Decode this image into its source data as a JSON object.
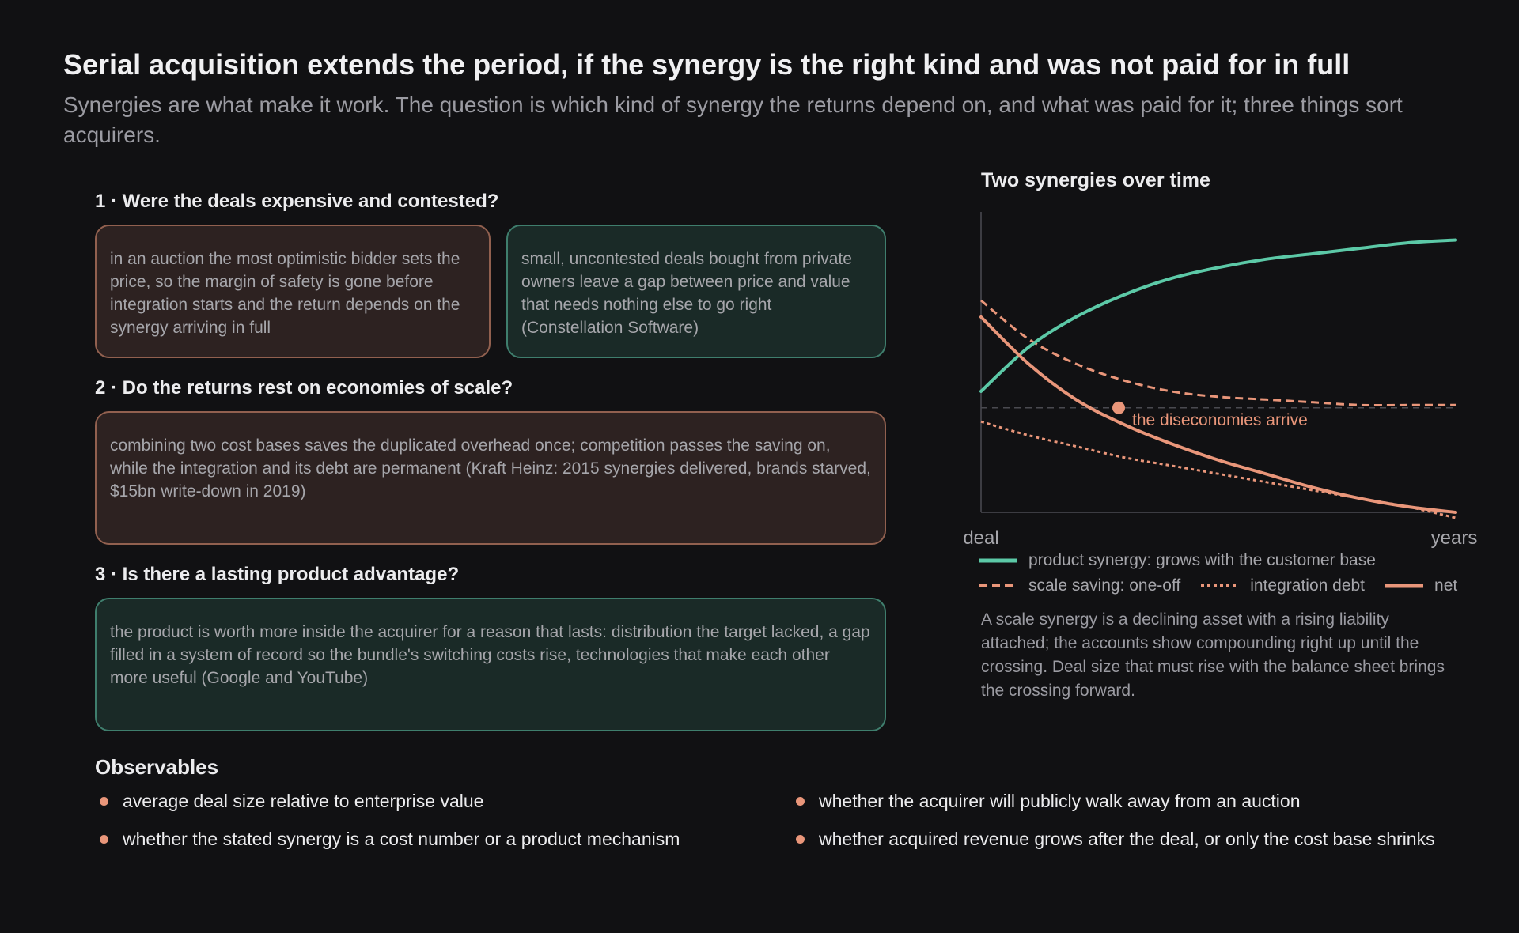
{
  "header": {
    "title": "Serial acquisition extends the period, if the synergy is the right kind and was not paid for in full",
    "subtitle": "Synergies are what make it work. The question is which kind of synergy the returns depend on, and what was paid for it; three things sort acquirers."
  },
  "questions": [
    {
      "label": "1 · Were the deals expensive and contested?",
      "boxes": [
        "in an auction the most optimistic bidder sets the price, so the margin of safety is gone before integration starts and the return depends on the synergy arriving in full",
        "small, uncontested deals bought from private owners leave a gap between price and value that needs nothing else to go right (Constellation Software)"
      ]
    },
    {
      "label": "2 · Do the returns rest on economies of scale?",
      "boxes": [
        "combining two cost bases saves the duplicated overhead once; competition passes the saving on, while the integration and its debt are permanent (Kraft Heinz: 2015 synergies delivered, brands starved, $15bn write-down in 2019)"
      ]
    },
    {
      "label": "3 · Is there a lasting product advantage?",
      "boxes": [
        "the product is worth more inside the acquirer for a reason that lasts: distribution the target lacked, a gap filled in a system of record so the bundle's switching costs rise, technologies that make each other more useful (Google and YouTube)"
      ]
    }
  ],
  "chart": {
    "title": "Two synergies over time",
    "annotation": "the diseconomies arrive",
    "note": "A scale synergy is a declining asset with a rising liability attached; the accounts show compounding right up until the crossing. Deal size that must rise with the balance sheet brings the crossing forward.",
    "legend": [
      "product synergy: grows with the customer base",
      "scale saving: one-off",
      "integration debt",
      "net"
    ],
    "colors": {
      "product": "#5cc9a7",
      "scale": "#e9967a",
      "debt": "#e9967a",
      "net": "#e9967a"
    }
  },
  "chart_data": {
    "type": "line",
    "title": "Two synergies over time",
    "x_tick_labels": [
      "deal",
      "years"
    ],
    "y_values_shown": false,
    "x": [
      0,
      0.1,
      0.2,
      0.3,
      0.4,
      0.5,
      0.6,
      0.7,
      0.8,
      0.9,
      1.0
    ],
    "series": [
      {
        "name": "product synergy: grows with the customer base",
        "style": "solid",
        "color": "#5cc9a7",
        "values": [
          0.44,
          0.6,
          0.71,
          0.79,
          0.85,
          0.89,
          0.92,
          0.94,
          0.96,
          0.98,
          0.99
        ]
      },
      {
        "name": "scale saving: one-off",
        "style": "dashed",
        "color": "#e9967a",
        "values": [
          0.77,
          0.63,
          0.54,
          0.48,
          0.44,
          0.42,
          0.41,
          0.4,
          0.39,
          0.39,
          0.39
        ]
      },
      {
        "name": "integration debt",
        "style": "dotted",
        "color": "#e9967a",
        "values": [
          0.33,
          0.28,
          0.24,
          0.2,
          0.17,
          0.14,
          0.11,
          0.08,
          0.05,
          0.02,
          -0.02
        ]
      },
      {
        "name": "net",
        "style": "solid",
        "color": "#e9967a",
        "values": [
          0.71,
          0.54,
          0.41,
          0.32,
          0.25,
          0.19,
          0.14,
          0.09,
          0.05,
          0.02,
          0.0
        ]
      }
    ],
    "reference_line": 0.38,
    "marker": {
      "x": 0.29,
      "y": 0.38,
      "label": "the diseconomies arrive"
    },
    "grid": false,
    "legend_position": "bottom"
  },
  "observables": {
    "title": "Observables",
    "items": [
      "average deal size relative to enterprise value",
      "whether the acquirer will publicly walk away from an auction",
      "whether the stated synergy is a cost number or a product mechanism",
      "whether acquired revenue grows after the deal, or only the cost base shrinks"
    ]
  }
}
